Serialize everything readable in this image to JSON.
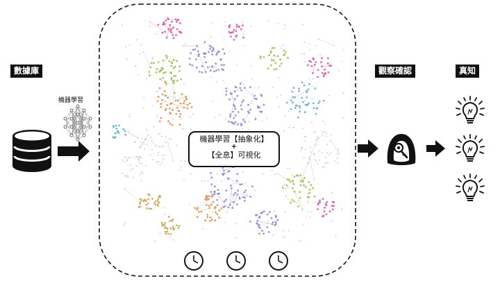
{
  "labels": {
    "data_store": "數據庫",
    "ml_small": "機器學習",
    "observe": "觀察確認",
    "truth": "真知"
  },
  "center_box": {
    "line1": "機器學習【抽象化】",
    "plus": "+",
    "line2": "【全息】可視化"
  },
  "icons": {
    "database": "database-icon",
    "neural_network": "neural-network-icon",
    "observer": "magnifier-observer-icon",
    "bulb": "lightbulb-icon",
    "clock": "clock-icon",
    "arrow": "arrow-right-icon"
  },
  "colors": {
    "ink": "#111111",
    "clusters": [
      "#d94f9a",
      "#8e80c9",
      "#9bbb4a",
      "#e08a46",
      "#5fa9c9",
      "#c9a24a",
      "#a0a0a0"
    ]
  }
}
